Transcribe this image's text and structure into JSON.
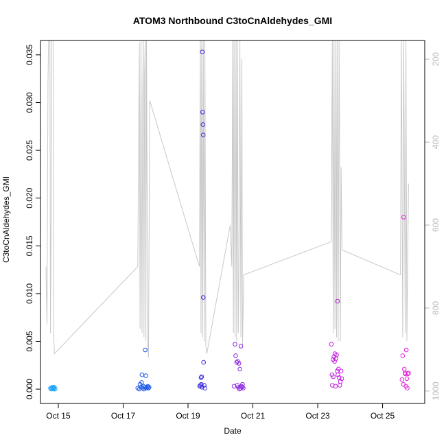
{
  "chart_data": {
    "type": "scatter",
    "title": "ATOM3 Northbound C3toCnAldehydes_GMI",
    "xlabel": "Date",
    "ylabel": "C3toCnAldehydes_GMI",
    "x_unit": "days",
    "xlim": [
      14.45,
      26.3
    ],
    "ylim": [
      -0.0015,
      0.0365
    ],
    "y_ticks": [
      0.0,
      0.005,
      0.01,
      0.015,
      0.02,
      0.025,
      0.03,
      0.035
    ],
    "y_tick_labels": [
      "0.000",
      "0.005",
      "0.010",
      "0.015",
      "0.020",
      "0.025",
      "0.030",
      "0.035"
    ],
    "x_ticks": [
      15,
      17,
      19,
      21,
      23,
      25
    ],
    "x_tick_labels": [
      "Oct 15",
      "Oct 17",
      "Oct 19",
      "Oct 21",
      "Oct 23",
      "Oct 25"
    ],
    "right_axis": {
      "label": "",
      "ylim": [
        1030,
        155
      ],
      "ticks": [
        200,
        400,
        600,
        800,
        1000
      ],
      "tick_labels": [
        "200",
        "400",
        "600",
        "800",
        "1000"
      ],
      "color": "#b5b5b5"
    },
    "series": [
      {
        "color": "#1aa3ff",
        "points": [
          [
            14.76,
            0.0001
          ],
          [
            14.78,
            0.0
          ],
          [
            14.8,
            0.0001
          ],
          [
            14.82,
            0.0002
          ],
          [
            14.84,
            0.0001
          ],
          [
            14.85,
            0.0
          ],
          [
            14.86,
            0.0001
          ],
          [
            14.88,
            0.0002
          ],
          [
            14.9,
            0.0
          ]
        ]
      },
      {
        "color": "#1a56e6",
        "points": [
          [
            17.45,
            0.0001
          ],
          [
            17.5,
            0.0
          ],
          [
            17.52,
            0.0005
          ],
          [
            17.55,
            0.0002
          ],
          [
            17.57,
            0.0007
          ],
          [
            17.58,
            0.0015
          ],
          [
            17.6,
            0.0001
          ],
          [
            17.62,
            0.0003
          ],
          [
            17.64,
            0.0
          ],
          [
            17.66,
            0.0002
          ],
          [
            17.68,
            0.0041
          ],
          [
            17.7,
            0.0014
          ],
          [
            17.72,
            0.0001
          ],
          [
            17.74,
            0.0002
          ],
          [
            17.76,
            0.0003
          ],
          [
            17.78,
            0.0001
          ],
          [
            17.8,
            0.0002
          ]
        ]
      },
      {
        "color": "#3a2ae0",
        "points": [
          [
            19.36,
            0.0003
          ],
          [
            19.38,
            0.0004
          ],
          [
            19.4,
            0.0012
          ],
          [
            19.41,
            0.0005
          ],
          [
            19.42,
            0.0013
          ],
          [
            19.43,
            0.0002
          ],
          [
            19.44,
            0.0353
          ],
          [
            19.45,
            0.029
          ],
          [
            19.46,
            0.0277
          ],
          [
            19.47,
            0.0266
          ],
          [
            19.47,
            0.0096
          ],
          [
            19.48,
            0.0028
          ],
          [
            19.5,
            0.0004
          ],
          [
            19.52,
            0.0001
          ]
        ]
      },
      {
        "color": "#8a22e0",
        "points": [
          [
            20.42,
            0.0003
          ],
          [
            20.45,
            0.0047
          ],
          [
            20.47,
            0.0035
          ],
          [
            20.5,
            0.0028
          ],
          [
            20.52,
            0.0004
          ],
          [
            20.53,
            0.0029
          ],
          [
            20.55,
            0.0002
          ],
          [
            20.57,
            0.0027
          ],
          [
            20.58,
            0.0
          ],
          [
            20.6,
            0.0021
          ],
          [
            20.62,
            0.0001
          ],
          [
            20.63,
            0.0045
          ],
          [
            20.65,
            0.0003
          ],
          [
            20.67,
            0.0002
          ],
          [
            20.68,
            0.0005
          ],
          [
            20.7,
            0.0001
          ]
        ]
      },
      {
        "color": "#c21ee0",
        "points": [
          [
            23.42,
            0.0047
          ],
          [
            23.44,
            0.0015
          ],
          [
            23.45,
            0.0004
          ],
          [
            23.47,
            0.0031
          ],
          [
            23.48,
            0.0013
          ],
          [
            23.5,
            0.0034
          ],
          [
            23.52,
            0.0029
          ],
          [
            23.53,
            0.0037
          ],
          [
            23.55,
            0.0003
          ],
          [
            23.56,
            0.0032
          ],
          [
            23.58,
            0.0036
          ],
          [
            23.6,
            0.0019
          ],
          [
            23.61,
            0.0092
          ],
          [
            23.62,
            0.0015
          ],
          [
            23.64,
            0.0021
          ],
          [
            23.66,
            0.0012
          ],
          [
            23.68,
            0.0004
          ],
          [
            23.7,
            0.0008
          ],
          [
            23.72,
            0.0019
          ],
          [
            23.74,
            0.0011
          ]
        ]
      },
      {
        "color": "#e01ed8",
        "points": [
          [
            25.6,
            0.001
          ],
          [
            25.62,
            0.0035
          ],
          [
            25.64,
            0.0005
          ],
          [
            25.65,
            0.018
          ],
          [
            25.67,
            0.0021
          ],
          [
            25.69,
            0.0017
          ],
          [
            25.7,
            0.0016
          ],
          [
            25.72,
            0.0003
          ],
          [
            25.73,
            0.0041
          ],
          [
            25.75,
            0.0011
          ],
          [
            25.76,
            0.0001
          ],
          [
            25.78,
            0.0016
          ],
          [
            25.8,
            0.0017
          ]
        ]
      }
    ],
    "pressure_trace": {
      "color": "#c8c8c8",
      "points": [
        [
          14.62,
          700
        ],
        [
          14.65,
          840
        ],
        [
          14.68,
          260
        ],
        [
          14.7,
          155
        ],
        [
          14.74,
          155
        ],
        [
          14.76,
          860
        ],
        [
          14.78,
          560
        ],
        [
          14.8,
          155
        ],
        [
          14.84,
          155
        ],
        [
          14.86,
          870
        ],
        [
          14.88,
          910
        ],
        [
          17.45,
          700
        ],
        [
          17.48,
          380
        ],
        [
          17.5,
          160
        ],
        [
          17.52,
          850
        ],
        [
          17.55,
          155
        ],
        [
          17.58,
          860
        ],
        [
          17.6,
          300
        ],
        [
          17.62,
          155
        ],
        [
          17.64,
          870
        ],
        [
          17.66,
          240
        ],
        [
          17.68,
          155
        ],
        [
          17.7,
          880
        ],
        [
          17.72,
          155
        ],
        [
          17.76,
          890
        ],
        [
          17.78,
          920
        ],
        [
          17.82,
          300
        ],
        [
          19.35,
          700
        ],
        [
          19.38,
          155
        ],
        [
          19.4,
          860
        ],
        [
          19.42,
          155
        ],
        [
          19.45,
          870
        ],
        [
          19.47,
          155
        ],
        [
          19.5,
          880
        ],
        [
          19.52,
          155
        ],
        [
          19.55,
          890
        ],
        [
          19.58,
          910
        ],
        [
          20.3,
          600
        ],
        [
          20.35,
          700
        ],
        [
          20.38,
          155
        ],
        [
          20.4,
          860
        ],
        [
          20.42,
          155
        ],
        [
          20.45,
          870
        ],
        [
          20.48,
          155
        ],
        [
          20.5,
          880
        ],
        [
          20.52,
          155
        ],
        [
          20.55,
          860
        ],
        [
          20.57,
          720
        ],
        [
          20.6,
          155
        ],
        [
          20.63,
          870
        ],
        [
          20.66,
          200
        ],
        [
          20.68,
          890
        ],
        [
          20.72,
          720
        ],
        [
          23.42,
          640
        ],
        [
          23.45,
          155
        ],
        [
          23.48,
          860
        ],
        [
          23.5,
          155
        ],
        [
          23.53,
          850
        ],
        [
          23.56,
          155
        ],
        [
          23.58,
          870
        ],
        [
          23.6,
          155
        ],
        [
          23.63,
          880
        ],
        [
          23.66,
          155
        ],
        [
          23.7,
          880
        ],
        [
          23.72,
          460
        ],
        [
          23.75,
          660
        ],
        [
          25.55,
          720
        ],
        [
          25.58,
          155
        ],
        [
          25.62,
          870
        ],
        [
          25.65,
          155
        ],
        [
          25.7,
          860
        ],
        [
          25.72,
          155
        ],
        [
          25.75,
          880
        ],
        [
          25.8,
          500
        ]
      ]
    }
  }
}
